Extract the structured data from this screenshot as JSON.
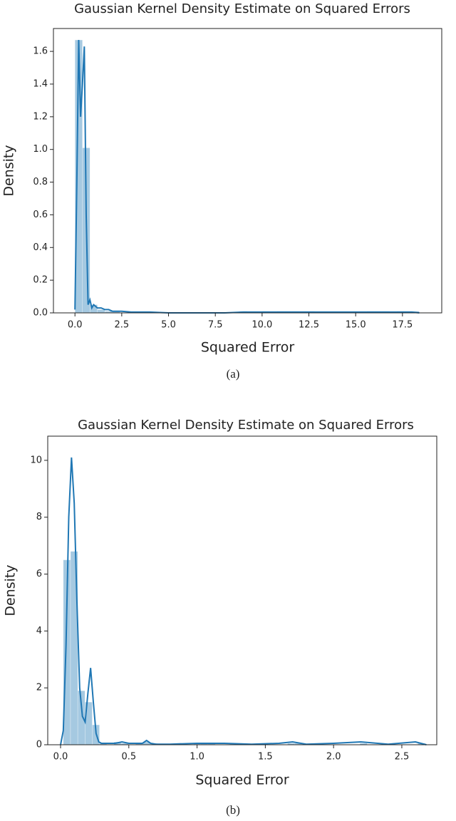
{
  "chart_data": [
    {
      "type": "histogram",
      "title": "Gaussian Kernel Density Estimate on Squared Errors",
      "x_label": "Squared Error",
      "y_label": "Density",
      "caption": "(a)",
      "color": "#1f77b4",
      "bins": [
        0,
        0.4,
        0.8,
        1.2,
        1.6,
        2.0,
        2.4,
        2.8,
        3.2,
        3.6,
        4.0,
        4.4,
        4.8,
        5.2,
        5.6,
        6.0,
        6.4,
        6.8,
        7.2,
        7.6,
        8.0,
        8.4,
        8.8,
        9.2,
        9.6,
        10.0,
        10.4,
        10.8,
        11.2,
        11.6,
        12.0,
        12.4,
        12.8,
        13.2,
        13.6,
        14.0,
        14.4,
        14.8,
        15.2,
        15.6,
        16.0,
        16.4,
        16.8,
        17.2,
        17.6,
        18.0,
        18.4
      ],
      "values": [
        1.67,
        1.01,
        0.05,
        0.02,
        0.01,
        0.01,
        0,
        0,
        0,
        0,
        0,
        0,
        0,
        0,
        0,
        0,
        0,
        0,
        0,
        0,
        0,
        0,
        0.01,
        0,
        0,
        0.01,
        0,
        0.01,
        0.01,
        0.01,
        0.01,
        0.01,
        0,
        0,
        0,
        0,
        0,
        0,
        0,
        0.01,
        0.01,
        0.01,
        0,
        0.01,
        0.01,
        0.01
      ],
      "kde": {
        "x": [
          0,
          0.1,
          0.2,
          0.3,
          0.4,
          0.5,
          0.6,
          0.7,
          0.8,
          0.9,
          1.0,
          1.2,
          1.4,
          1.6,
          1.8,
          2.0,
          2.5,
          3,
          4,
          5,
          8,
          9,
          10,
          12,
          15,
          18,
          18.4
        ],
        "values": [
          0.02,
          0.8,
          1.67,
          1.2,
          1.4,
          1.63,
          0.6,
          0.05,
          0.08,
          0.03,
          0.05,
          0.03,
          0.03,
          0.02,
          0.02,
          0.01,
          0.01,
          0.005,
          0.005,
          0,
          0,
          0.005,
          0.005,
          0.005,
          0.005,
          0.005,
          0
        ]
      },
      "xlim": [
        -1.15,
        19.6
      ],
      "ylim": [
        0,
        1.74
      ],
      "xticks": [
        {
          "value": 0,
          "label": "0.0"
        },
        2.5,
        {
          "value": 5,
          "label": "5.0"
        },
        7.5,
        {
          "value": 10,
          "label": "10.0"
        },
        12.5,
        {
          "value": 15,
          "label": "15.0"
        },
        17.5
      ],
      "yticks": [
        {
          "value": 0,
          "label": "0.0"
        },
        0.2,
        0.4,
        0.6,
        0.8,
        {
          "value": 1,
          "label": "1.0"
        },
        1.2,
        1.4,
        1.6
      ]
    },
    {
      "type": "histogram",
      "title": "Gaussian Kernel Density Estimate on Squared Errors",
      "x_label": "Squared Error",
      "y_label": "Density",
      "caption": "(b)",
      "color": "#1f77b4",
      "bins": [
        0.02,
        0.073,
        0.126,
        0.179,
        0.232,
        0.285,
        0.338,
        0.391,
        0.444,
        0.497,
        0.55,
        0.603,
        0.656,
        0.709,
        0.762,
        0.815,
        0.868,
        0.921,
        0.974,
        1.027,
        1.08,
        1.133,
        1.186,
        1.239,
        1.292,
        1.345,
        1.398,
        1.451,
        1.504,
        1.557,
        1.61,
        1.663,
        1.716,
        1.769,
        1.822,
        1.875,
        1.928,
        1.981,
        2.034,
        2.087,
        2.14,
        2.193,
        2.246,
        2.299,
        2.352,
        2.405,
        2.458,
        2.511,
        2.564,
        2.617,
        2.67
      ],
      "values": [
        6.5,
        6.8,
        1.9,
        1.5,
        0.7,
        0.05,
        0,
        0.1,
        0.05,
        0,
        0.05,
        0.1,
        0.05,
        0,
        0,
        0,
        0,
        0,
        0.05,
        0.05,
        0.05,
        0,
        0,
        0.05,
        0,
        0,
        0,
        0,
        0,
        0,
        0,
        0.05,
        0.05,
        0,
        0,
        0,
        0,
        0,
        0,
        0,
        0,
        0.05,
        0,
        0,
        0,
        0,
        0,
        0,
        0,
        0.05
      ],
      "kde": {
        "x": [
          0.0,
          0.02,
          0.04,
          0.06,
          0.08,
          0.1,
          0.12,
          0.14,
          0.16,
          0.18,
          0.2,
          0.22,
          0.24,
          0.26,
          0.28,
          0.3,
          0.35,
          0.4,
          0.45,
          0.5,
          0.55,
          0.6,
          0.63,
          0.66,
          0.7,
          0.8,
          1.0,
          1.2,
          1.4,
          1.6,
          1.7,
          1.8,
          2.0,
          2.2,
          2.4,
          2.6,
          2.68
        ],
        "values": [
          0,
          0.5,
          3.5,
          8,
          10.1,
          8.5,
          5,
          2,
          1,
          0.8,
          1.8,
          2.7,
          1.5,
          0.4,
          0.1,
          0.05,
          0.05,
          0.05,
          0.1,
          0.05,
          0.05,
          0.05,
          0.15,
          0.05,
          0.02,
          0.02,
          0.05,
          0.05,
          0.02,
          0.05,
          0.1,
          0.02,
          0.05,
          0.1,
          0.02,
          0.1,
          0
        ]
      },
      "xlim": [
        -0.094,
        2.756
      ],
      "ylim": [
        0,
        10.85
      ],
      "xticks": [
        {
          "value": 0,
          "label": "0.0"
        },
        0.5,
        {
          "value": 1,
          "label": "1.0"
        },
        1.5,
        {
          "value": 2,
          "label": "2.0"
        },
        2.5
      ],
      "yticks": [
        0,
        2,
        4,
        6,
        8,
        10
      ]
    }
  ]
}
